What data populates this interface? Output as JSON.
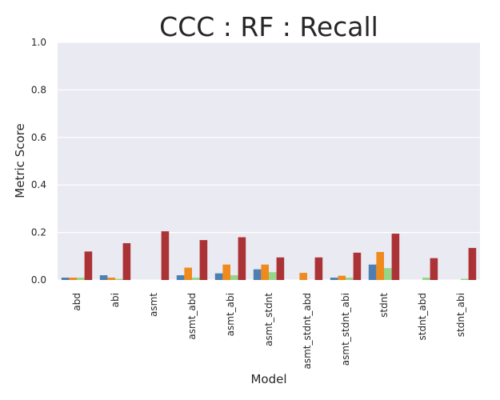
{
  "chart_data": {
    "type": "bar",
    "title": "CCC : RF : Recall",
    "xlabel": "Model",
    "ylabel": "Metric Score",
    "ylim": [
      0,
      1.0
    ],
    "yticks": [
      "0.0",
      "0.2",
      "0.4",
      "0.6",
      "0.8",
      "1.0"
    ],
    "grid": true,
    "categories": [
      "abd",
      "abi",
      "asmt",
      "asmt_abd",
      "asmt_abi",
      "asmt_stdnt",
      "asmt_stdnt_abd",
      "asmt_stdnt_abi",
      "stdnt",
      "stdnt_abd",
      "stdnt_abi"
    ],
    "series": [
      {
        "color": "#4f7fb0",
        "values": [
          0.01,
          0.02,
          0.0,
          0.02,
          0.028,
          0.045,
          0.0,
          0.01,
          0.065,
          0.0,
          0.0
        ]
      },
      {
        "color": "#ef8a1d",
        "values": [
          0.01,
          0.01,
          0.0,
          0.052,
          0.065,
          0.065,
          0.03,
          0.018,
          0.118,
          0.0,
          0.0
        ]
      },
      {
        "color": "#97d68a",
        "values": [
          0.01,
          0.005,
          0.0,
          0.01,
          0.02,
          0.033,
          0.0,
          0.01,
          0.05,
          0.01,
          0.005
        ]
      },
      {
        "color": "#ab3336",
        "values": [
          0.12,
          0.155,
          0.205,
          0.168,
          0.18,
          0.095,
          0.095,
          0.115,
          0.195,
          0.092,
          0.135
        ]
      }
    ]
  }
}
